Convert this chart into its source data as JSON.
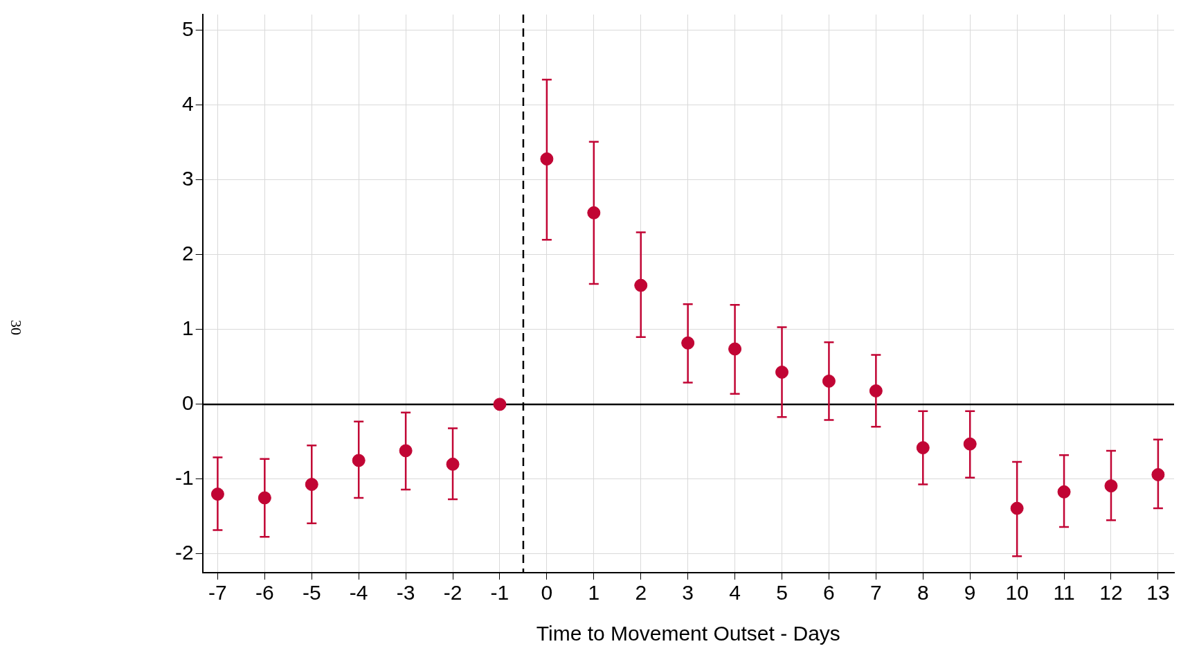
{
  "chart_data": {
    "type": "scatter",
    "xlabel": "Time to Movement Outset - Days",
    "x": [
      -7,
      -6,
      -5,
      -4,
      -3,
      -2,
      -1,
      0,
      1,
      2,
      3,
      4,
      5,
      6,
      7,
      8,
      9,
      10,
      11,
      12,
      13
    ],
    "series": [
      {
        "color": "#c10534",
        "values": [
          -1.2,
          -1.25,
          -1.07,
          -0.75,
          -0.62,
          -0.8,
          0,
          3.28,
          2.56,
          1.59,
          0.82,
          0.74,
          0.43,
          0.31,
          0.18,
          -0.58,
          -0.53,
          -1.39,
          -1.17,
          -1.09,
          -0.94
        ],
        "errors": [
          [
            -1.68,
            -0.71
          ],
          [
            -1.77,
            -0.73
          ],
          [
            -1.59,
            -0.55
          ],
          [
            -1.25,
            -0.23
          ],
          [
            -1.14,
            -0.11
          ],
          [
            -1.27,
            -0.32
          ],
          null,
          [
            2.2,
            4.34
          ],
          [
            1.61,
            3.51
          ],
          [
            0.9,
            2.3
          ],
          [
            0.29,
            1.34
          ],
          [
            0.14,
            1.33
          ],
          [
            -0.17,
            1.03
          ],
          [
            -0.21,
            0.83
          ],
          [
            -0.3,
            0.66
          ],
          [
            -1.07,
            -0.09
          ],
          [
            -0.98,
            -0.09
          ],
          [
            -2.03,
            -0.77
          ],
          [
            -1.64,
            -0.68
          ],
          [
            -1.55,
            -0.62
          ],
          [
            -1.39,
            -0.47
          ]
        ]
      }
    ],
    "xlim": [
      -7.32,
      13.34
    ],
    "xticks": [
      -7,
      -6,
      -5,
      -4,
      -3,
      -2,
      -1,
      0,
      1,
      2,
      3,
      4,
      5,
      6,
      7,
      8,
      9,
      10,
      11,
      12,
      13
    ],
    "ylim": [
      -2.25,
      5.21
    ],
    "yticks": [
      -2,
      -1,
      0,
      1,
      2,
      3,
      4,
      5
    ],
    "ref_lines": [
      {
        "axis": "y",
        "value": 0,
        "color": "#000000",
        "line_style": "solid"
      },
      {
        "axis": "x",
        "value": -0.5,
        "color": "#000000",
        "line_style": "dashed"
      }
    ],
    "annotations": [
      "30"
    ],
    "grid": true,
    "marker": "circle",
    "legend": false
  }
}
